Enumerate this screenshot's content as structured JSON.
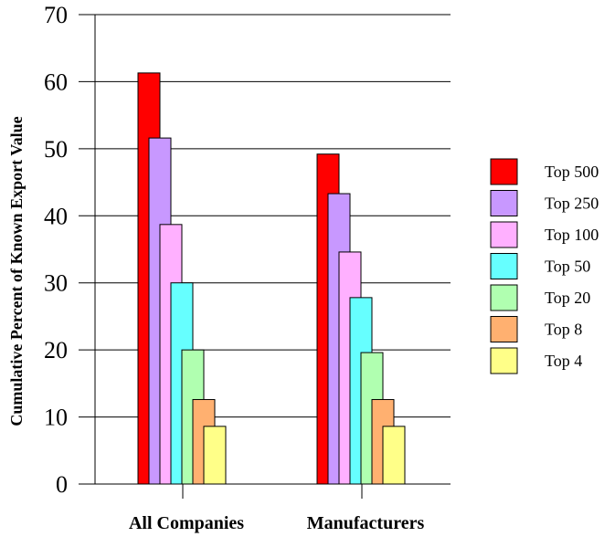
{
  "chart_data": {
    "type": "bar",
    "title": "",
    "xlabel": "",
    "ylabel": "Cumulative Percent of Known Export Value",
    "ylim": [
      0,
      70
    ],
    "yticks": [
      0,
      10,
      20,
      30,
      40,
      50,
      60,
      70
    ],
    "grid": true,
    "legend_position": "right",
    "categories": [
      "All Companies",
      "Manufacturers"
    ],
    "series": [
      {
        "name": "Top 500",
        "color": "#ff0000",
        "values": [
          61.3,
          49.2
        ]
      },
      {
        "name": "Top 250",
        "color": "#c898ff",
        "values": [
          51.6,
          43.3
        ]
      },
      {
        "name": "Top 100",
        "color": "#ffb0ff",
        "values": [
          38.7,
          34.6
        ]
      },
      {
        "name": "Top 50",
        "color": "#66ffff",
        "values": [
          30.0,
          27.8
        ]
      },
      {
        "name": "Top 20",
        "color": "#b0ffb0",
        "values": [
          20.0,
          19.6
        ]
      },
      {
        "name": "Top 8",
        "color": "#ffb070",
        "values": [
          12.6,
          12.6
        ]
      },
      {
        "name": "Top 4",
        "color": "#ffff88",
        "values": [
          8.6,
          8.6
        ]
      }
    ]
  }
}
